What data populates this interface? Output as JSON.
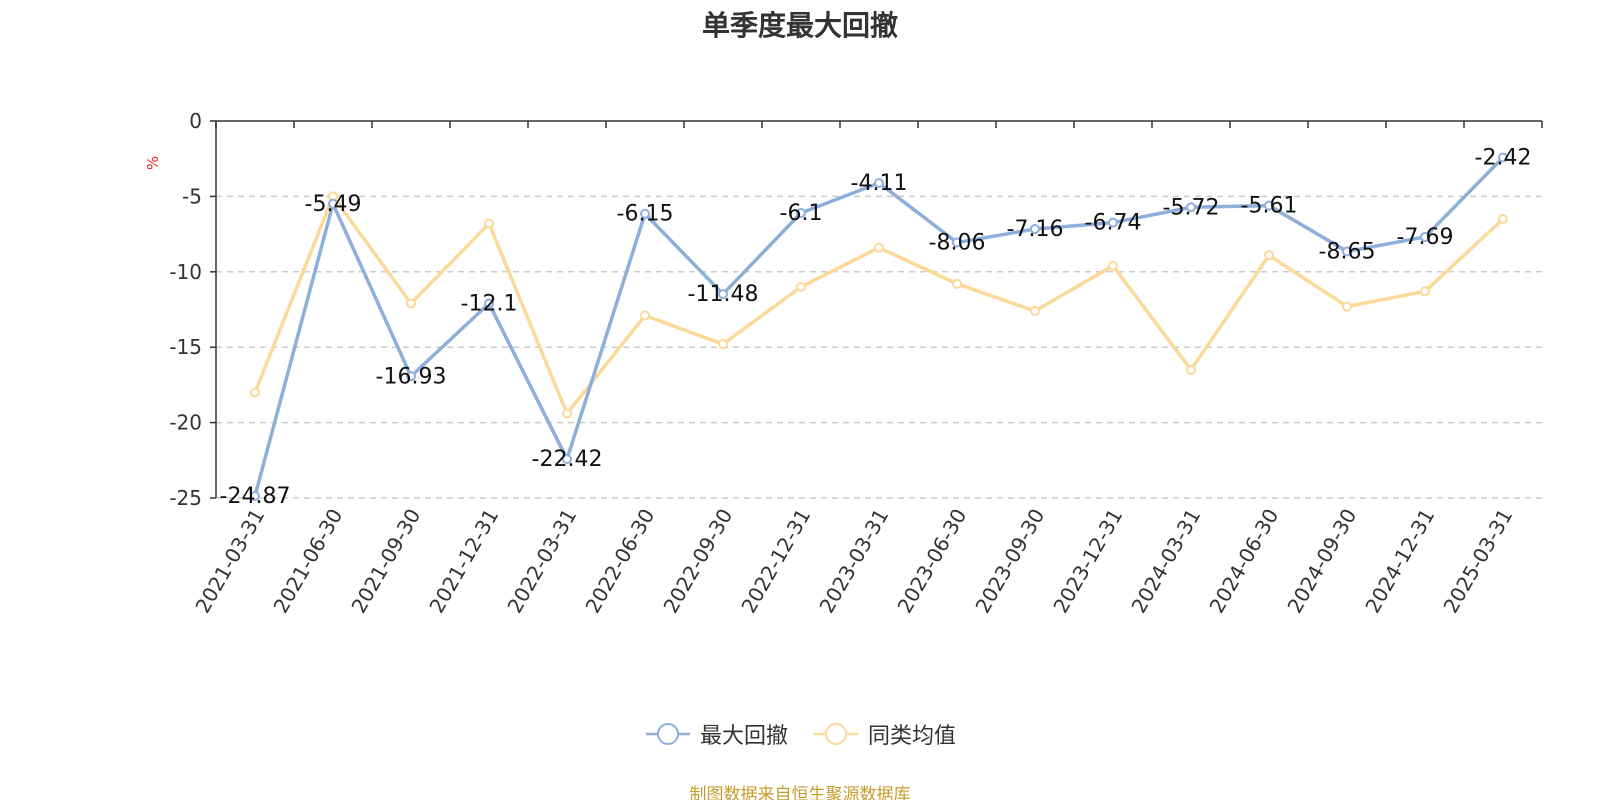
{
  "title": "单季度最大回撤",
  "source_note": "制图数据来自恒生聚源数据库",
  "chart_data": {
    "type": "line",
    "title": "单季度最大回撤",
    "ylabel": "%",
    "xlabel": "",
    "ylim": [
      -25,
      0
    ],
    "yticks": [
      0,
      -5,
      -10,
      -15,
      -20,
      -25
    ],
    "grid": true,
    "legend_position": "bottom",
    "categories": [
      "2021-03-31",
      "2021-06-30",
      "2021-09-30",
      "2021-12-31",
      "2022-03-31",
      "2022-06-30",
      "2022-09-30",
      "2022-12-31",
      "2023-03-31",
      "2023-06-30",
      "2023-09-30",
      "2023-12-31",
      "2024-03-31",
      "2024-06-30",
      "2024-09-30",
      "2024-12-31",
      "2025-03-31"
    ],
    "series": [
      {
        "name": "最大回撤",
        "color": "#8eaedc",
        "show_labels": true,
        "values": [
          -24.87,
          -5.49,
          -16.93,
          -12.1,
          -22.42,
          -6.15,
          -11.48,
          -6.1,
          -4.11,
          -8.06,
          -7.16,
          -6.74,
          -5.72,
          -5.61,
          -8.65,
          -7.69,
          -2.42
        ]
      },
      {
        "name": "同类均值",
        "color": "#fcd999",
        "show_labels": false,
        "values": [
          -18.0,
          -5.0,
          -12.1,
          -6.8,
          -19.4,
          -12.9,
          -14.8,
          -11.0,
          -8.4,
          -10.8,
          -12.6,
          -9.6,
          -16.5,
          -8.9,
          -12.3,
          -11.3,
          -6.5
        ]
      }
    ]
  }
}
